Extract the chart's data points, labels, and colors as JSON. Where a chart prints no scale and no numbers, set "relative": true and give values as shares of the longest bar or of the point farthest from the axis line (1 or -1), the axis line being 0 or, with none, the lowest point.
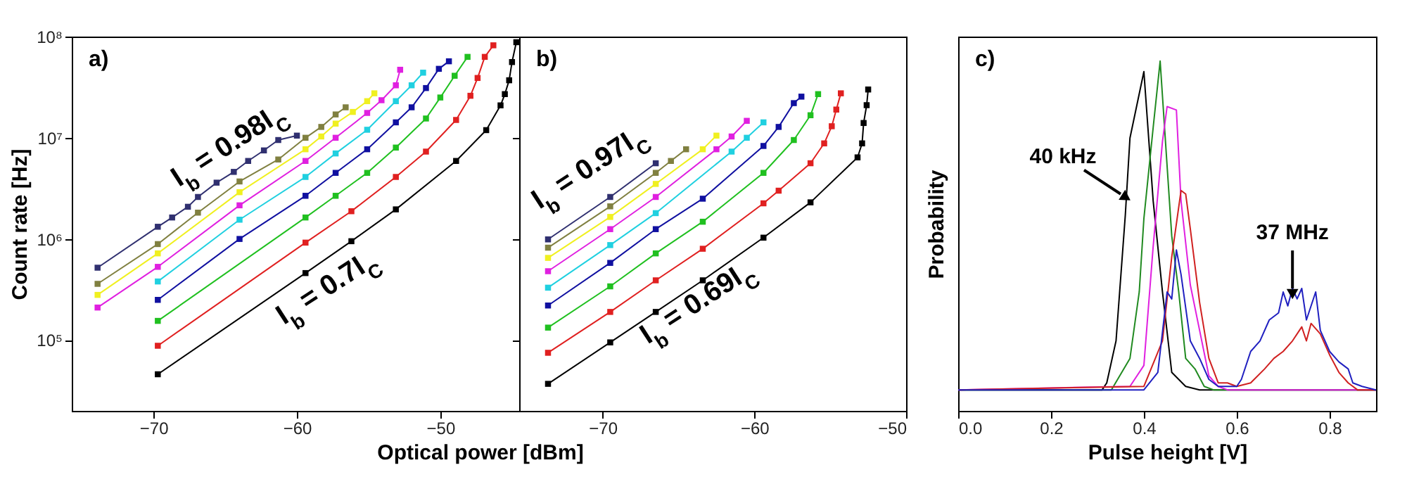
{
  "chart_data": [
    {
      "type": "line",
      "ylabel": "Count rate [Hz]",
      "xlabel": "Optical power [dBm]",
      "log": "y",
      "marker": "square",
      "xlim": [
        -75.7,
        -44.5
      ],
      "xticks": [
        -70,
        -60,
        -50
      ],
      "ylim": [
        20000,
        100000000
      ],
      "yticks": [
        {
          "value": 100000,
          "label": "10⁵"
        },
        {
          "value": 1000000,
          "label": "10⁶"
        },
        {
          "value": 10000000,
          "label": "10⁷"
        },
        {
          "value": 100000000,
          "label": "10⁸"
        }
      ],
      "annotations": [
        "a)",
        "I$_{b}$ = 0.98I$_{C}$",
        "I$_{b}$ = 0.7I$_{C}$"
      ],
      "series": [
        {
          "color": "#000000",
          "x": [
            -69.7,
            -59.4,
            -56.2,
            -53.1,
            -48.9,
            -46.8,
            -45.8,
            -45.5,
            -45.2,
            -45.0,
            -44.7
          ],
          "values": [
            46000.0,
            460000.0,
            950000.0,
            1960000.0,
            5900000.0,
            11900000.0,
            20900000.0,
            27000000.0,
            37000000.0,
            56000000.0,
            88000000.0
          ]
        },
        {
          "color": "#e02020",
          "x": [
            -69.7,
            -59.4,
            -56.2,
            -53.1,
            -51.0,
            -48.9,
            -47.9,
            -47.4,
            -46.9,
            -46.3
          ],
          "values": [
            88000.0,
            920000.0,
            1880000.0,
            4100000.0,
            7300000.0,
            15000000.0,
            26000000.0,
            39000000.0,
            63000000.0,
            82000000.0
          ]
        },
        {
          "color": "#20c020",
          "x": [
            -69.7,
            -59.4,
            -57.3,
            -55.1,
            -53.1,
            -51.0,
            -50.0,
            -49.0,
            -48.1
          ],
          "values": [
            155000.0,
            1630000.0,
            2670000.0,
            4500000.0,
            8000000.0,
            15500000.0,
            25000000.0,
            41000000.0,
            63000000.0
          ]
        },
        {
          "color": "#1010a0",
          "x": [
            -69.7,
            -64.0,
            -59.4,
            -57.3,
            -55.1,
            -53.1,
            -52.0,
            -51.0,
            -50.1,
            -49.4
          ],
          "values": [
            250000.0,
            1000000.0,
            2670000.0,
            4500000.0,
            7700000.0,
            14200000.0,
            20000000.0,
            31000000.0,
            48000000.0,
            57000000.0
          ]
        },
        {
          "color": "#20d0e0",
          "x": [
            -69.7,
            -64.0,
            -59.4,
            -57.3,
            -55.1,
            -53.1,
            -52.0,
            -51.2
          ],
          "values": [
            380000.0,
            1550000.0,
            4100000.0,
            7000000.0,
            12000000.0,
            23000000.0,
            33000000.0,
            44000000.0
          ]
        },
        {
          "color": "#e020e0",
          "x": [
            -73.9,
            -69.7,
            -64.0,
            -59.4,
            -57.3,
            -55.1,
            -54.1,
            -53.1,
            -52.8
          ],
          "values": [
            210000.0,
            530000.0,
            2150000.0,
            5900000.0,
            10000000.0,
            17600000.0,
            23500000.0,
            33000000.0,
            47000000.0
          ]
        },
        {
          "color": "#f0f020",
          "x": [
            -73.9,
            -69.7,
            -64.0,
            -59.4,
            -58.3,
            -57.3,
            -56.1,
            -55.1,
            -54.6
          ],
          "values": [
            280000.0,
            720000.0,
            2900000.0,
            7700000.0,
            10300000.0,
            13800000.0,
            18000000.0,
            23000000.0,
            27500000.0
          ]
        },
        {
          "color": "#808040",
          "x": [
            -73.9,
            -69.7,
            -66.9,
            -64.0,
            -61.3,
            -59.4,
            -58.3,
            -57.3,
            -56.6
          ],
          "values": [
            360000.0,
            890000.0,
            1820000.0,
            3700000.0,
            6100000.0,
            10000000.0,
            12800000.0,
            17000000.0,
            20000000.0
          ]
        },
        {
          "color": "#303070",
          "x": [
            -73.9,
            -69.7,
            -68.7,
            -67.6,
            -66.9,
            -65.6,
            -64.4,
            -63.4,
            -62.3,
            -61.3,
            -60.0
          ],
          "values": [
            520000.0,
            1320000.0,
            1630000.0,
            2080000.0,
            2600000.0,
            3600000.0,
            4600000.0,
            5900000.0,
            7500000.0,
            9500000.0,
            10500000.0
          ]
        }
      ]
    },
    {
      "type": "line",
      "log": "y",
      "marker": "square",
      "tick_labels": "x",
      "xlim": [
        -75.5,
        -50
      ],
      "xticks": [
        -70,
        -60,
        -50
      ],
      "ylim": [
        20000,
        100000000
      ],
      "yticks": [
        {
          "value": 100000,
          "label": null
        },
        {
          "value": 1000000,
          "label": null
        },
        {
          "value": 10000000,
          "label": null
        },
        {
          "value": 100000000,
          "label": null
        }
      ],
      "annotations": [
        "b)",
        "I$_{b}$ = 0.97I$_{C}$",
        "I$_{b}$ = 0.69I$_{C}$"
      ],
      "series": [
        {
          "color": "#000000",
          "x": [
            -73.6,
            -69.5,
            -66.5,
            -63.4,
            -59.4,
            -56.3,
            -53.2,
            -52.9,
            -52.8,
            -52.6,
            -52.5
          ],
          "values": [
            37000.0,
            95000.0,
            190000.0,
            390000.0,
            1030000.0,
            2300000.0,
            6400000.0,
            8800000.0,
            14000000.0,
            21000000.0,
            30000000.0
          ]
        },
        {
          "color": "#e02020",
          "x": [
            -73.6,
            -69.5,
            -66.5,
            -63.4,
            -59.4,
            -58.4,
            -56.3,
            -55.4,
            -54.9,
            -54.6,
            -54.3
          ],
          "values": [
            75000.0,
            190000.0,
            390000.0,
            800000.0,
            2250000.0,
            3000000.0,
            5600000.0,
            8800000.0,
            13000000.0,
            19000000.0,
            27500000.0
          ]
        },
        {
          "color": "#20c020",
          "x": [
            -73.6,
            -69.5,
            -66.5,
            -63.4,
            -59.4,
            -57.4,
            -56.3,
            -55.8
          ],
          "values": [
            133000.0,
            340000.0,
            720000.0,
            1480000.0,
            4500000.0,
            9500000.0,
            16700000.0,
            27000000.0
          ]
        },
        {
          "color": "#1010a0",
          "x": [
            -73.6,
            -69.5,
            -66.5,
            -63.4,
            -59.4,
            -58.4,
            -57.4,
            -56.9
          ],
          "values": [
            220000.0,
            580000.0,
            1250000.0,
            2500000.0,
            8300000.0,
            12800000.0,
            22000000.0,
            25500000.0
          ]
        },
        {
          "color": "#20d0e0",
          "x": [
            -73.6,
            -69.5,
            -66.5,
            -61.5,
            -60.5,
            -59.4
          ],
          "values": [
            330000.0,
            870000.0,
            1800000.0,
            7300000.0,
            10000000.0,
            14200000.0
          ]
        },
        {
          "color": "#e020e0",
          "x": [
            -73.6,
            -69.5,
            -66.5,
            -62.5,
            -61.5,
            -60.5
          ],
          "values": [
            480000.0,
            1250000.0,
            2600000.0,
            7700000.0,
            10300000.0,
            14700000.0
          ]
        },
        {
          "color": "#f0f020",
          "x": [
            -73.6,
            -69.5,
            -66.5,
            -63.4,
            -62.5
          ],
          "values": [
            650000.0,
            1650000.0,
            3500000.0,
            7700000.0,
            10500000.0
          ]
        },
        {
          "color": "#808040",
          "x": [
            -73.6,
            -69.5,
            -66.5,
            -65.5,
            -64.5
          ],
          "values": [
            820000.0,
            2100000.0,
            4500000.0,
            5900000.0,
            7700000.0
          ]
        },
        {
          "color": "#303070",
          "x": [
            -73.6,
            -69.5,
            -66.5
          ],
          "values": [
            990000.0,
            2600000.0,
            5600000.0
          ]
        }
      ]
    },
    {
      "type": "line",
      "relative": true,
      "xlabel": "Pulse height [V]",
      "ylabel": "Probability",
      "tick_labels": "x",
      "xlim": [
        0,
        0.9
      ],
      "xticks": [
        {
          "value": 0,
          "label": "0.0"
        },
        {
          "value": 0.2,
          "label": "0.2"
        },
        {
          "value": 0.4,
          "label": "0.4"
        },
        {
          "value": 0.6,
          "label": "0.6"
        },
        {
          "value": 0.8,
          "label": "0.8"
        }
      ],
      "annotations": [
        "c)",
        {
          "text": "40 kHz",
          "x": 0.35,
          "y": 0.62
        },
        {
          "text": "37 MHz",
          "x": 0.72,
          "y": 0.35
        }
      ],
      "series": [
        {
          "color": "#000000",
          "x": [
            0,
            0.31,
            0.32,
            0.34,
            0.36,
            0.37,
            0.4,
            0.42,
            0.44,
            0.46,
            0.49,
            0.52,
            0.9
          ],
          "values": [
            0.06,
            0.06,
            0.08,
            0.2,
            0.56,
            0.78,
            0.97,
            0.6,
            0.34,
            0.11,
            0.07,
            0.06,
            0.06
          ]
        },
        {
          "color": "#208a20",
          "x": [
            0,
            0.33,
            0.37,
            0.39,
            0.4,
            0.42,
            0.435,
            0.445,
            0.46,
            0.475,
            0.49,
            0.51,
            0.53,
            0.55,
            0.9
          ],
          "values": [
            0.06,
            0.06,
            0.15,
            0.34,
            0.55,
            0.81,
            1,
            0.8,
            0.5,
            0.34,
            0.15,
            0.12,
            0.07,
            0.06,
            0.06
          ]
        },
        {
          "color": "#e020e0",
          "x": [
            0,
            0.37,
            0.4,
            0.42,
            0.44,
            0.45,
            0.47,
            0.48,
            0.5,
            0.52,
            0.54,
            0.56,
            0.58,
            0.9
          ],
          "values": [
            0.06,
            0.07,
            0.13,
            0.47,
            0.77,
            0.87,
            0.86,
            0.6,
            0.36,
            0.23,
            0.1,
            0.07,
            0.06,
            0.06
          ]
        },
        {
          "color": "#d02020",
          "x": [
            0,
            0.4,
            0.44,
            0.46,
            0.48,
            0.49,
            0.5,
            0.52,
            0.54,
            0.56,
            0.58,
            0.6,
            0.63,
            0.66,
            0.68,
            0.7,
            0.72,
            0.74,
            0.75,
            0.76,
            0.78,
            0.8,
            0.82,
            0.84,
            0.86,
            0.9
          ],
          "values": [
            0.06,
            0.07,
            0.2,
            0.44,
            0.63,
            0.62,
            0.52,
            0.31,
            0.15,
            0.08,
            0.08,
            0.07,
            0.08,
            0.12,
            0.15,
            0.17,
            0.2,
            0.24,
            0.2,
            0.25,
            0.22,
            0.16,
            0.11,
            0.08,
            0.06,
            0.06
          ]
        },
        {
          "color": "#2020c0",
          "x": [
            0,
            0.4,
            0.43,
            0.45,
            0.46,
            0.47,
            0.48,
            0.5,
            0.52,
            0.54,
            0.56,
            0.6,
            0.61,
            0.63,
            0.65,
            0.67,
            0.69,
            0.7,
            0.71,
            0.72,
            0.73,
            0.74,
            0.75,
            0.77,
            0.78,
            0.8,
            0.82,
            0.84,
            0.85,
            0.87,
            0.9
          ],
          "values": [
            0.06,
            0.06,
            0.11,
            0.34,
            0.32,
            0.46,
            0.39,
            0.2,
            0.15,
            0.09,
            0.07,
            0.07,
            0.09,
            0.17,
            0.2,
            0.26,
            0.28,
            0.34,
            0.3,
            0.35,
            0.32,
            0.35,
            0.26,
            0.34,
            0.23,
            0.17,
            0.14,
            0.12,
            0.08,
            0.07,
            0.06
          ]
        }
      ]
    }
  ]
}
